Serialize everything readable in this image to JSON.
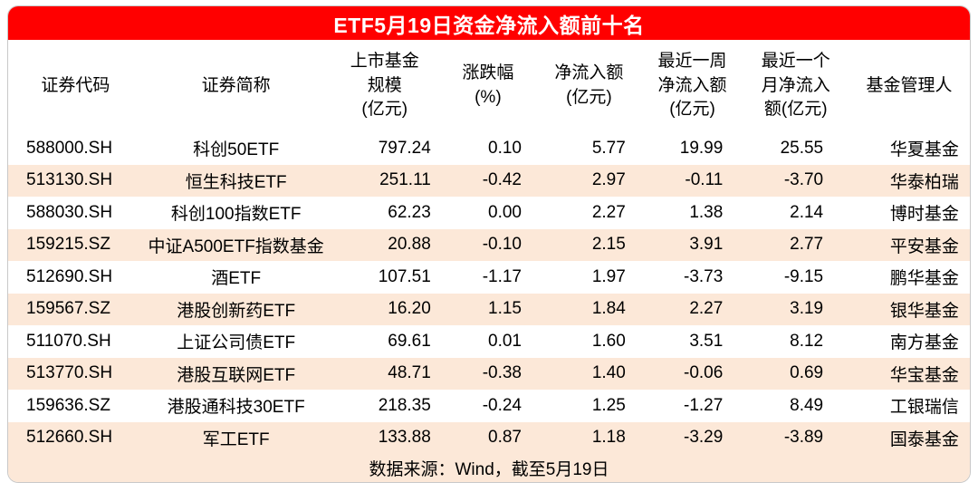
{
  "title": "ETF5月19日资金净流入额前十名",
  "footer": "数据来源：Wind，截至5月19日",
  "colors": {
    "title_bg": "#ff0000",
    "title_text": "#ffffff",
    "row_alt": "#fce8d8",
    "border": "#c8c8c8"
  },
  "columns": [
    {
      "label": "证券代码"
    },
    {
      "label": "证券简称"
    },
    {
      "label": "上市基金\n规模\n(亿元)"
    },
    {
      "label": "涨跌幅\n(%)"
    },
    {
      "label": "净流入额\n(亿元)"
    },
    {
      "label": "最近一周\n净流入额\n(亿元)"
    },
    {
      "label": "最近一个\n月净流入\n额(亿元)"
    },
    {
      "label": "基金管理人"
    }
  ],
  "rows": [
    [
      "588000.SH",
      "科创50ETF",
      "797.24",
      "0.10",
      "5.77",
      "19.99",
      "25.55",
      "华夏基金"
    ],
    [
      "513130.SH",
      "恒生科技ETF",
      "251.11",
      "-0.42",
      "2.97",
      "-0.11",
      "-3.70",
      "华泰柏瑞"
    ],
    [
      "588030.SH",
      "科创100指数ETF",
      "62.23",
      "0.00",
      "2.27",
      "1.38",
      "2.14",
      "博时基金"
    ],
    [
      "159215.SZ",
      "中证A500ETF指数基金",
      "20.88",
      "-0.10",
      "2.15",
      "3.91",
      "2.77",
      "平安基金"
    ],
    [
      "512690.SH",
      "酒ETF",
      "107.51",
      "-1.17",
      "1.97",
      "-3.73",
      "-9.15",
      "鹏华基金"
    ],
    [
      "159567.SZ",
      "港股创新药ETF",
      "16.20",
      "1.15",
      "1.84",
      "2.27",
      "3.19",
      "银华基金"
    ],
    [
      "511070.SH",
      "上证公司债ETF",
      "69.61",
      "0.01",
      "1.60",
      "3.51",
      "8.12",
      "南方基金"
    ],
    [
      "513770.SH",
      "港股互联网ETF",
      "48.71",
      "-0.38",
      "1.40",
      "-0.06",
      "0.69",
      "华宝基金"
    ],
    [
      "159636.SZ",
      "港股通科技30ETF",
      "218.35",
      "-0.24",
      "1.25",
      "-1.27",
      "8.49",
      "工银瑞信"
    ],
    [
      "512660.SH",
      "军工ETF",
      "133.88",
      "0.87",
      "1.18",
      "-3.29",
      "-3.89",
      "国泰基金"
    ]
  ],
  "chart_data": {
    "type": "table",
    "title": "ETF5月19日资金净流入额前十名",
    "columns": [
      "证券代码",
      "证券简称",
      "上市基金规模(亿元)",
      "涨跌幅(%)",
      "净流入额(亿元)",
      "最近一周净流入额(亿元)",
      "最近一个月净流入额(亿元)",
      "基金管理人"
    ],
    "rows": [
      [
        "588000.SH",
        "科创50ETF",
        797.24,
        0.1,
        5.77,
        19.99,
        25.55,
        "华夏基金"
      ],
      [
        "513130.SH",
        "恒生科技ETF",
        251.11,
        -0.42,
        2.97,
        -0.11,
        -3.7,
        "华泰柏瑞"
      ],
      [
        "588030.SH",
        "科创100指数ETF",
        62.23,
        0.0,
        2.27,
        1.38,
        2.14,
        "博时基金"
      ],
      [
        "159215.SZ",
        "中证A500ETF指数基金",
        20.88,
        -0.1,
        2.15,
        3.91,
        2.77,
        "平安基金"
      ],
      [
        "512690.SH",
        "酒ETF",
        107.51,
        -1.17,
        1.97,
        -3.73,
        -9.15,
        "鹏华基金"
      ],
      [
        "159567.SZ",
        "港股创新药ETF",
        16.2,
        1.15,
        1.84,
        2.27,
        3.19,
        "银华基金"
      ],
      [
        "511070.SH",
        "上证公司债ETF",
        69.61,
        0.01,
        1.6,
        3.51,
        8.12,
        "南方基金"
      ],
      [
        "513770.SH",
        "港股互联网ETF",
        48.71,
        -0.38,
        1.4,
        -0.06,
        0.69,
        "华宝基金"
      ],
      [
        "159636.SZ",
        "港股通科技30ETF",
        218.35,
        -0.24,
        1.25,
        -1.27,
        8.49,
        "工银瑞信"
      ],
      [
        "512660.SH",
        "军工ETF",
        133.88,
        0.87,
        1.18,
        -3.29,
        -3.89,
        "国泰基金"
      ]
    ],
    "source": "数据来源：Wind，截至5月19日"
  }
}
